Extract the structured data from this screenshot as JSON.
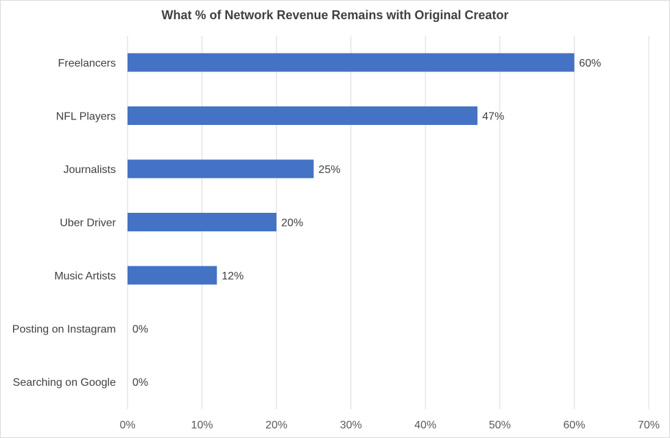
{
  "chart_data": {
    "type": "bar",
    "orientation": "horizontal",
    "title": "What % of Network Revenue Remains with Original Creator",
    "categories": [
      "Freelancers",
      "NFL Players",
      "Journalists",
      "Uber Driver",
      "Music Artists",
      "Posting on Instagram",
      "Searching on Google"
    ],
    "values": [
      60,
      47,
      25,
      20,
      12,
      0,
      0
    ],
    "data_labels": [
      "60%",
      "47%",
      "25%",
      "20%",
      "12%",
      "0%",
      "0%"
    ],
    "x_ticks": [
      "0%",
      "10%",
      "20%",
      "30%",
      "40%",
      "50%",
      "60%",
      "70%"
    ],
    "xlim": [
      0,
      70
    ],
    "xlabel": "",
    "ylabel": "",
    "grid": true,
    "legend": "none",
    "bar_color": "#4472c4",
    "grid_color": "#d9d9d9"
  }
}
